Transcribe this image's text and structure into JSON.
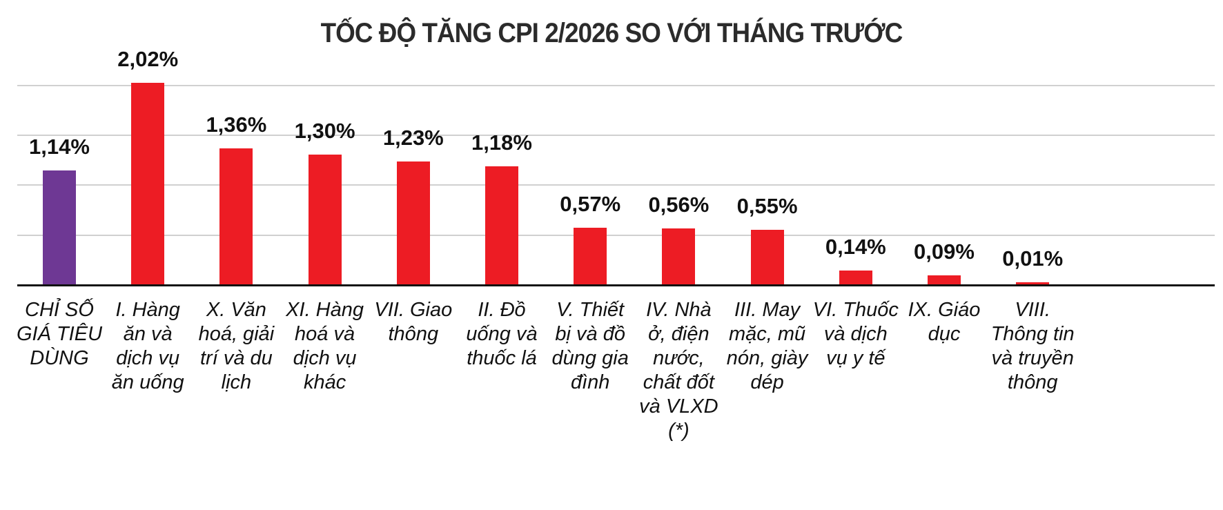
{
  "title": "TỐC ĐỘ TĂNG CPI 2/2026 SO VỚI THÁNG TRƯỚC",
  "colors": {
    "highlight": "#6E3894",
    "bar": "#ED1C24",
    "grid": "#D0D0D0",
    "axis": "#111111"
  },
  "chart_data": {
    "type": "bar",
    "title": "TỐC ĐỘ TĂNG CPI 2/2026 SO VỚI THÁNG TRƯỚC",
    "xlabel": "",
    "ylabel": "",
    "unit": "%",
    "ylim": [
      0,
      2.0
    ],
    "grid": true,
    "gridlines": [
      0.5,
      1.0,
      1.5,
      2.0
    ],
    "legend": null,
    "categories": [
      "CHỈ SỐ GIÁ TIÊU DÙNG",
      "I. Hàng ăn và dịch vụ ăn uống",
      "X. Văn hoá, giải trí và du lịch",
      "XI. Hàng hoá và dịch vụ khác",
      "VII. Giao thông",
      "II. Đồ uống và thuốc lá",
      "V. Thiết bị và đồ dùng gia đình",
      "IV. Nhà ở, điện nước, chất đốt và VLXD (*)",
      "III. May mặc, mũ nón, giày dép",
      "VI. Thuốc và dịch vụ y tế",
      "IX. Giáo dục",
      "VIII. Thông tin và truyền thông"
    ],
    "values": [
      1.14,
      2.02,
      1.36,
      1.3,
      1.23,
      1.18,
      0.57,
      0.56,
      0.55,
      0.14,
      0.09,
      0.01
    ],
    "value_labels": [
      "1,14%",
      "2,02%",
      "1,36%",
      "1,30%",
      "1,23%",
      "1,18%",
      "0,57%",
      "0,56%",
      "0,55%",
      "0,14%",
      "0,09%",
      "0,01%"
    ],
    "bar_colors": [
      "#6E3894",
      "#ED1C24",
      "#ED1C24",
      "#ED1C24",
      "#ED1C24",
      "#ED1C24",
      "#ED1C24",
      "#ED1C24",
      "#ED1C24",
      "#ED1C24",
      "#ED1C24",
      "#ED1C24"
    ]
  },
  "bars": [
    {
      "label": "CHỈ SỐ\nGIÁ TIÊU\nDÙNG",
      "value_label": "1,14%"
    },
    {
      "label": "I. Hàng\năn và\ndịch vụ\năn uống",
      "value_label": "2,02%"
    },
    {
      "label": "X. Văn\nhoá, giải\ntrí và du\nlịch",
      "value_label": "1,36%"
    },
    {
      "label": "XI. Hàng\nhoá và\ndịch vụ\nkhác",
      "value_label": "1,30%"
    },
    {
      "label": "VII. Giao\nthông",
      "value_label": "1,23%"
    },
    {
      "label": "II. Đồ\nuống và\nthuốc lá",
      "value_label": "1,18%"
    },
    {
      "label": "V. Thiết\nbị và đồ\ndùng gia\nđình",
      "value_label": "0,57%"
    },
    {
      "label": "IV. Nhà\nở, điện\nnước,\nchất đốt\nvà VLXD\n(*)",
      "value_label": "0,56%"
    },
    {
      "label": "III. May\nmặc, mũ\nnón, giày\ndép",
      "value_label": "0,55%"
    },
    {
      "label": "VI. Thuốc\nvà dịch\nvụ y tế",
      "value_label": "0,14%"
    },
    {
      "label": "IX. Giáo\ndục",
      "value_label": "0,09%"
    },
    {
      "label": "VIII.\nThông tin\nvà truyền\nthông",
      "value_label": "0,01%"
    }
  ]
}
